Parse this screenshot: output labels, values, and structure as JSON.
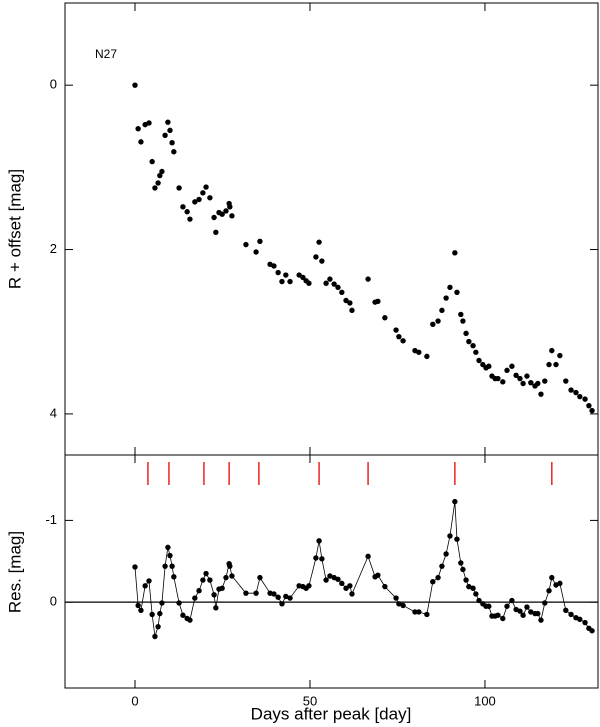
{
  "chart_data": [
    {
      "type": "scatter",
      "annotation": "N27",
      "ylabel": "R + offset [mag]",
      "color": "#000000",
      "xlim": [
        -20,
        132.3
      ],
      "ylim": [
        4.5,
        -1
      ],
      "yticks": [
        0,
        2,
        4
      ],
      "x": [
        0,
        0.9,
        1.7,
        2.9,
        4,
        4.9,
        5.7,
        6.6,
        7.1,
        7.7,
        8.6,
        9.4,
        10,
        10.6,
        11.1,
        12.6,
        13.7,
        14.9,
        15.7,
        17.1,
        18.3,
        19.4,
        20.3,
        21.4,
        22.6,
        23.1,
        24,
        24.9,
        26,
        26.9,
        27.1,
        27.7,
        31.7,
        34.6,
        35.7,
        38.6,
        39.7,
        40.9,
        42,
        43.1,
        44.3,
        46.9,
        48,
        48.9,
        49.7,
        51.7,
        52.6,
        53.4,
        54.6,
        55.7,
        56.9,
        58,
        59.1,
        60.3,
        61.4,
        62,
        66.6,
        68.6,
        69.4,
        71.4,
        74.6,
        75.4,
        76.6,
        80,
        81.1,
        83.4,
        85.1,
        86.6,
        87.7,
        88.9,
        90,
        91.4,
        92,
        93.1,
        93.7,
        94.6,
        95.4,
        96.6,
        97.4,
        98.3,
        99.4,
        100.3,
        101.1,
        102,
        102.9,
        103.7,
        105.1,
        106.3,
        107.7,
        108.9,
        110,
        110.9,
        112,
        113.1,
        114.3,
        115.1,
        116,
        117.1,
        118.3,
        119.1,
        120.3,
        121.4,
        123.1,
        124.6,
        126,
        127.1,
        128.6,
        129.7,
        130.6
      ],
      "values": [
        0,
        0.53,
        0.69,
        0.48,
        0.46,
        0.93,
        1.25,
        1.19,
        1.1,
        1.05,
        0.61,
        0.45,
        0.55,
        0.7,
        0.81,
        1.25,
        1.48,
        1.54,
        1.63,
        1.42,
        1.39,
        1.31,
        1.24,
        1.37,
        1.61,
        1.79,
        1.55,
        1.57,
        1.53,
        1.44,
        1.48,
        1.59,
        1.94,
        2.03,
        1.9,
        2.18,
        2.2,
        2.28,
        2.39,
        2.31,
        2.39,
        2.31,
        2.34,
        2.38,
        2.41,
        2.09,
        1.91,
        2.14,
        2.41,
        2.36,
        2.42,
        2.46,
        2.52,
        2.62,
        2.65,
        2.74,
        2.36,
        2.64,
        2.63,
        2.83,
        2.98,
        3.06,
        3.11,
        3.23,
        3.25,
        3.3,
        2.91,
        2.87,
        2.74,
        2.59,
        2.46,
        2.04,
        2.52,
        2.79,
        2.87,
        3.02,
        3.12,
        3.17,
        3.25,
        3.35,
        3.4,
        3.44,
        3.42,
        3.54,
        3.57,
        3.57,
        3.61,
        3.47,
        3.42,
        3.53,
        3.57,
        3.63,
        3.54,
        3.62,
        3.66,
        3.63,
        3.76,
        3.6,
        3.4,
        3.23,
        3.4,
        3.29,
        3.6,
        3.71,
        3.74,
        3.79,
        3.82,
        3.9,
        3.96
      ]
    },
    {
      "type": "line",
      "xlabel": "Days after peak [day]",
      "ylabel": "Res. [mag]",
      "color": "#000000",
      "hline": 0,
      "markers": [
        3.7,
        9.7,
        19.7,
        26.9,
        35.4,
        52.6,
        66.6,
        91.4,
        119.1
      ],
      "marker_color": "#e8251f",
      "xlim": [
        -20,
        132.3
      ],
      "xticks": [
        0,
        50,
        100
      ],
      "ylim": [
        1.05,
        -1.8
      ],
      "yticks": [
        -1,
        0
      ],
      "x": [
        0,
        0.9,
        1.7,
        2.9,
        4,
        4.9,
        5.7,
        6.6,
        7.1,
        7.7,
        8.6,
        9.4,
        10,
        10.6,
        11.1,
        12.6,
        13.7,
        14.9,
        15.7,
        17.1,
        18.3,
        19.4,
        20.3,
        21.4,
        22.6,
        23.1,
        24,
        24.9,
        26,
        26.9,
        27.1,
        27.7,
        31.7,
        34.6,
        35.7,
        38.6,
        39.7,
        40.9,
        42,
        43.1,
        44.3,
        46.9,
        48,
        48.9,
        49.7,
        51.7,
        52.6,
        53.4,
        54.6,
        55.7,
        56.9,
        58,
        59.1,
        60.3,
        61.4,
        62,
        66.6,
        68.6,
        69.4,
        71.4,
        74.6,
        75.4,
        76.6,
        80,
        81.1,
        83.4,
        85.1,
        86.6,
        87.7,
        88.9,
        90,
        91.4,
        92,
        93.1,
        93.7,
        94.6,
        95.4,
        96.6,
        97.4,
        98.3,
        99.4,
        100.3,
        101.1,
        102,
        102.9,
        103.7,
        105.1,
        106.3,
        107.7,
        108.9,
        110,
        110.9,
        112,
        113.1,
        114.3,
        115.1,
        116,
        117.1,
        118.3,
        119.1,
        120.3,
        121.4,
        123.1,
        124.6,
        126,
        127.1,
        128.6,
        129.7,
        130.6
      ],
      "values": [
        -0.43,
        0.04,
        0.1,
        -0.2,
        -0.26,
        0.15,
        0.42,
        0.3,
        0.14,
        0.01,
        -0.44,
        -0.67,
        -0.57,
        -0.44,
        -0.31,
        0.01,
        0.16,
        0.2,
        0.22,
        -0.05,
        -0.14,
        -0.27,
        -0.35,
        -0.27,
        -0.09,
        0.07,
        -0.16,
        -0.17,
        -0.3,
        -0.47,
        -0.44,
        -0.32,
        -0.11,
        -0.11,
        -0.3,
        -0.11,
        -0.1,
        -0.06,
        0.02,
        -0.07,
        -0.05,
        -0.2,
        -0.19,
        -0.17,
        -0.2,
        -0.54,
        -0.75,
        -0.53,
        -0.27,
        -0.32,
        -0.3,
        -0.28,
        -0.23,
        -0.17,
        -0.2,
        -0.1,
        -0.56,
        -0.31,
        -0.33,
        -0.19,
        -0.05,
        0.02,
        0.04,
        0.12,
        0.12,
        0.15,
        -0.25,
        -0.3,
        -0.44,
        -0.59,
        -0.81,
        -1.23,
        -0.77,
        -0.48,
        -0.4,
        -0.27,
        -0.19,
        -0.17,
        -0.1,
        -0.02,
        0.02,
        0.05,
        0.05,
        0.17,
        0.17,
        0.16,
        0.2,
        0.05,
        -0.02,
        0.09,
        0.11,
        0.16,
        0.06,
        0.12,
        0.14,
        0.14,
        0.22,
        0.01,
        -0.14,
        -0.3,
        -0.21,
        -0.23,
        0.1,
        0.15,
        0.19,
        0.21,
        0.25,
        0.32,
        0.35
      ]
    }
  ]
}
